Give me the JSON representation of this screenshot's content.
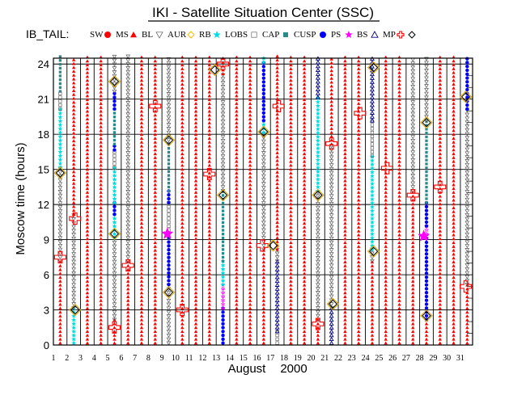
{
  "chart_data": {
    "type": "scatter",
    "title": "IKI - Satellite Situation Center (SSC)",
    "legend_title": "IB_TAIL:",
    "legend": [
      {
        "name": "SW",
        "color": "#ff0000",
        "symbol": "dot"
      },
      {
        "name": "MS",
        "color": "#ff0000",
        "symbol": "triangle-fill"
      },
      {
        "name": "BL",
        "color": "#555555",
        "symbol": "triangle-down"
      },
      {
        "name": "AUR",
        "color": "#ffbb00",
        "symbol": "diamond"
      },
      {
        "name": "RB",
        "color": "#00dddd",
        "symbol": "star"
      },
      {
        "name": "LOBS",
        "color": "#666666",
        "symbol": "square-open"
      },
      {
        "name": "CAP",
        "color": "#2a8a8a",
        "symbol": "square"
      },
      {
        "name": "CUSP",
        "color": "#0000ff",
        "symbol": "dot"
      },
      {
        "name": "PS",
        "color": "#ff00ff",
        "symbol": "star"
      },
      {
        "name": "BS",
        "color": "#000080",
        "symbol": "triangle"
      },
      {
        "name": "MP",
        "color": "#ff0000",
        "symbol": "plus"
      },
      {
        "name": "",
        "color": "#000000",
        "symbol": "diamond"
      }
    ],
    "ylabel": "Moscow time (hours)",
    "xlabel": "August",
    "xlabel_year": "2000",
    "ylim": [
      0,
      24.5
    ],
    "yticks": [
      0,
      3,
      6,
      9,
      12,
      15,
      18,
      21,
      24
    ],
    "xlim": [
      1,
      31.9
    ],
    "days": [
      1,
      2,
      3,
      4,
      5,
      6,
      7,
      8,
      9,
      10,
      11,
      12,
      13,
      14,
      15,
      16,
      17,
      18,
      19,
      20,
      21,
      22,
      23,
      24,
      25,
      26,
      27,
      28,
      29,
      30,
      31
    ],
    "grid": true,
    "colors": {
      "SW": "#ff0000",
      "MS": "#ff0000",
      "BL": "#555555",
      "AUR": "#d9a400",
      "RB": "#00dddd",
      "LOBS": "#666666",
      "CAP": "#2a8a8a",
      "CUSP": "#0000ff",
      "PS": "#ff00ff",
      "BS": "#000080",
      "MP": "#ff0000"
    },
    "passes": [
      {
        "day": 1,
        "segments": [
          {
            "region": "MS",
            "from": 0,
            "to": 7
          },
          {
            "region": "BL",
            "from": 7,
            "to": 15
          },
          {
            "region": "RB",
            "from": 15,
            "to": 20
          },
          {
            "region": "LOBS",
            "from": 20,
            "to": 21.5
          },
          {
            "region": "CAP",
            "from": 21.5,
            "to": 24.5
          }
        ]
      },
      {
        "day": 2,
        "segments": [
          {
            "region": "RB",
            "from": 0,
            "to": 3
          },
          {
            "region": "BL",
            "from": 3,
            "to": 11
          },
          {
            "region": "MS",
            "from": 11,
            "to": 24.5
          }
        ]
      },
      {
        "day": 3,
        "segments": [
          {
            "region": "MS",
            "from": 0,
            "to": 24.5
          }
        ]
      },
      {
        "day": 4,
        "segments": [
          {
            "region": "MS",
            "from": 0,
            "to": 24.5
          }
        ]
      },
      {
        "day": 5,
        "segments": [
          {
            "region": "MS",
            "from": 0,
            "to": 2
          },
          {
            "region": "BL",
            "from": 2,
            "to": 9
          },
          {
            "region": "RB",
            "from": 9,
            "to": 11
          },
          {
            "region": "CUSP",
            "from": 11,
            "to": 12
          },
          {
            "region": "RB",
            "from": 12,
            "to": 15
          },
          {
            "region": "LOBS",
            "from": 15,
            "to": 16.5
          },
          {
            "region": "CUSP",
            "from": 16.5,
            "to": 17
          },
          {
            "region": "CAP",
            "from": 17,
            "to": 20
          },
          {
            "region": "CUSP",
            "from": 20,
            "to": 21.5
          },
          {
            "region": "BL",
            "from": 21.5,
            "to": 24.5
          }
        ]
      },
      {
        "day": 6,
        "segments": [
          {
            "region": "MS",
            "from": 0,
            "to": 7
          },
          {
            "region": "BL",
            "from": 7,
            "to": 24.5
          }
        ]
      },
      {
        "day": 7,
        "segments": [
          {
            "region": "MS",
            "from": 0,
            "to": 24.5
          }
        ]
      },
      {
        "day": 8,
        "segments": [
          {
            "region": "MS",
            "from": 0,
            "to": 24.5
          }
        ]
      },
      {
        "day": 9,
        "segments": [
          {
            "region": "BL",
            "from": 0,
            "to": 5
          },
          {
            "region": "CUSP",
            "from": 5,
            "to": 9
          },
          {
            "region": "LOBS",
            "from": 9,
            "to": 12
          },
          {
            "region": "CUSP",
            "from": 12,
            "to": 13
          },
          {
            "region": "CAP",
            "from": 13,
            "to": 17
          },
          {
            "region": "BL",
            "from": 17,
            "to": 24.5
          }
        ]
      },
      {
        "day": 10,
        "segments": [
          {
            "region": "MS",
            "from": 0,
            "to": 24.5
          }
        ]
      },
      {
        "day": 11,
        "segments": [
          {
            "region": "MS",
            "from": 0,
            "to": 24.5
          }
        ]
      },
      {
        "day": 12,
        "segments": [
          {
            "region": "MS",
            "from": 0,
            "to": 24.5
          }
        ]
      },
      {
        "day": 13,
        "segments": [
          {
            "region": "CUSP",
            "from": 0,
            "to": 3
          },
          {
            "region": "PS",
            "from": 3,
            "to": 5
          },
          {
            "region": "RB",
            "from": 5,
            "to": 7
          },
          {
            "region": "CAP",
            "from": 7,
            "to": 13
          },
          {
            "region": "BL",
            "from": 13,
            "to": 23
          },
          {
            "region": "MS",
            "from": 23,
            "to": 24.5
          }
        ]
      },
      {
        "day": 14,
        "segments": [
          {
            "region": "MS",
            "from": 0,
            "to": 24.5
          }
        ]
      },
      {
        "day": 15,
        "segments": [
          {
            "region": "MS",
            "from": 0,
            "to": 24.5
          }
        ]
      },
      {
        "day": 16,
        "segments": [
          {
            "region": "MS",
            "from": 0,
            "to": 8
          },
          {
            "region": "BL",
            "from": 8,
            "to": 18
          },
          {
            "region": "RB",
            "from": 18,
            "to": 19
          },
          {
            "region": "CUSP",
            "from": 19,
            "to": 24
          },
          {
            "region": "RB",
            "from": 24,
            "to": 24.5
          }
        ]
      },
      {
        "day": 17,
        "segments": [
          {
            "region": "LOBS",
            "from": 0,
            "to": 1
          },
          {
            "region": "BS",
            "from": 1,
            "to": 7
          },
          {
            "region": "BL",
            "from": 7,
            "to": 8
          },
          {
            "region": "MS",
            "from": 8,
            "to": 24.5
          }
        ]
      },
      {
        "day": 18,
        "segments": [
          {
            "region": "MS",
            "from": 0,
            "to": 24.5
          }
        ]
      },
      {
        "day": 19,
        "segments": [
          {
            "region": "MS",
            "from": 0,
            "to": 24.5
          }
        ]
      },
      {
        "day": 20,
        "segments": [
          {
            "region": "MS",
            "from": 0,
            "to": 2
          },
          {
            "region": "BL",
            "from": 2,
            "to": 13
          },
          {
            "region": "RB",
            "from": 13,
            "to": 21
          },
          {
            "region": "BS",
            "from": 21,
            "to": 24.5
          }
        ]
      },
      {
        "day": 21,
        "segments": [
          {
            "region": "BS",
            "from": 0,
            "to": 3
          },
          {
            "region": "BL",
            "from": 3,
            "to": 17
          },
          {
            "region": "MS",
            "from": 17,
            "to": 24.5
          }
        ]
      },
      {
        "day": 22,
        "segments": [
          {
            "region": "MS",
            "from": 0,
            "to": 24.5
          }
        ]
      },
      {
        "day": 23,
        "segments": [
          {
            "region": "MS",
            "from": 0,
            "to": 24.5
          }
        ]
      },
      {
        "day": 24,
        "segments": [
          {
            "region": "MS",
            "from": 0,
            "to": 7
          },
          {
            "region": "BL",
            "from": 7,
            "to": 8
          },
          {
            "region": "RB",
            "from": 8,
            "to": 16
          },
          {
            "region": "LOBS",
            "from": 16,
            "to": 19
          },
          {
            "region": "BS",
            "from": 19,
            "to": 24.5
          }
        ]
      },
      {
        "day": 25,
        "segments": [
          {
            "region": "MS",
            "from": 0,
            "to": 24.5
          }
        ]
      },
      {
        "day": 26,
        "segments": [
          {
            "region": "MS",
            "from": 0,
            "to": 24.5
          }
        ]
      },
      {
        "day": 27,
        "segments": [
          {
            "region": "MS",
            "from": 0,
            "to": 13
          },
          {
            "region": "BL",
            "from": 13,
            "to": 24.5
          }
        ]
      },
      {
        "day": 28,
        "segments": [
          {
            "region": "MS",
            "from": 0,
            "to": 2
          },
          {
            "region": "CUSP",
            "from": 2,
            "to": 9
          },
          {
            "region": "PS",
            "from": 9,
            "to": 10
          },
          {
            "region": "CUSP",
            "from": 10,
            "to": 12
          },
          {
            "region": "CAP",
            "from": 12,
            "to": 19
          },
          {
            "region": "BL",
            "from": 19,
            "to": 24.5
          }
        ]
      },
      {
        "day": 29,
        "segments": [
          {
            "region": "MS",
            "from": 0,
            "to": 24.5
          }
        ]
      },
      {
        "day": 30,
        "segments": [
          {
            "region": "MS",
            "from": 0,
            "to": 24.5
          }
        ]
      },
      {
        "day": 31,
        "segments": [
          {
            "region": "MS",
            "from": 0,
            "to": 5
          },
          {
            "region": "BL",
            "from": 5,
            "to": 20
          },
          {
            "region": "CUSP",
            "from": 20,
            "to": 24.5
          }
        ]
      }
    ],
    "markers": [
      {
        "type": "MP",
        "day": 1.2,
        "hour": 7.5
      },
      {
        "type": "AUR",
        "day": 1.2,
        "hour": 14.7
      },
      {
        "type": "MP",
        "day": 2.3,
        "hour": 10.8
      },
      {
        "type": "AUR",
        "day": 2.3,
        "hour": 3.0
      },
      {
        "type": "AUR",
        "day": 5.2,
        "hour": 9.5
      },
      {
        "type": "AUR",
        "day": 5.2,
        "hour": 22.5
      },
      {
        "type": "MP",
        "day": 5.2,
        "hour": 1.5
      },
      {
        "type": "MP",
        "day": 6.2,
        "hour": 6.8
      },
      {
        "type": "MP",
        "day": 8.2,
        "hour": 20.4
      },
      {
        "type": "AUR",
        "day": 9.2,
        "hour": 4.5
      },
      {
        "type": "AUR",
        "day": 9.2,
        "hour": 17.5
      },
      {
        "type": "PS",
        "day": 9.1,
        "hour": 9.5
      },
      {
        "type": "MP",
        "day": 10.2,
        "hour": 3.0
      },
      {
        "type": "MP",
        "day": 12.2,
        "hour": 14.6
      },
      {
        "type": "AUR",
        "day": 12.6,
        "hour": 23.5
      },
      {
        "type": "AUR",
        "day": 13.2,
        "hour": 12.8
      },
      {
        "type": "MP",
        "day": 13.2,
        "hour": 24.0
      },
      {
        "type": "MP",
        "day": 16.1,
        "hour": 8.5
      },
      {
        "type": "AUR",
        "day": 16.2,
        "hour": 18.2
      },
      {
        "type": "AUR",
        "day": 16.9,
        "hour": 8.5
      },
      {
        "type": "MP",
        "day": 17.3,
        "hour": 20.4
      },
      {
        "type": "AUR",
        "day": 20.2,
        "hour": 12.8
      },
      {
        "type": "MP",
        "day": 20.2,
        "hour": 1.8
      },
      {
        "type": "MP",
        "day": 21.2,
        "hour": 17.2
      },
      {
        "type": "AUR",
        "day": 21.3,
        "hour": 3.5
      },
      {
        "type": "MP",
        "day": 23.3,
        "hour": 19.8
      },
      {
        "type": "AUR",
        "day": 24.3,
        "hour": 8.0
      },
      {
        "type": "AUR",
        "day": 24.3,
        "hour": 23.7
      },
      {
        "type": "MP",
        "day": 25.3,
        "hour": 15.1
      },
      {
        "type": "MP",
        "day": 27.2,
        "hour": 12.8
      },
      {
        "type": "PS",
        "day": 28.0,
        "hour": 9.3
      },
      {
        "type": "AUR",
        "day": 28.2,
        "hour": 2.5
      },
      {
        "type": "AUR",
        "day": 28.2,
        "hour": 19.0
      },
      {
        "type": "MP",
        "day": 29.2,
        "hour": 13.5
      },
      {
        "type": "AUR",
        "day": 31.1,
        "hour": 21.2
      },
      {
        "type": "MP",
        "day": 31.1,
        "hour": 5.0
      }
    ]
  }
}
